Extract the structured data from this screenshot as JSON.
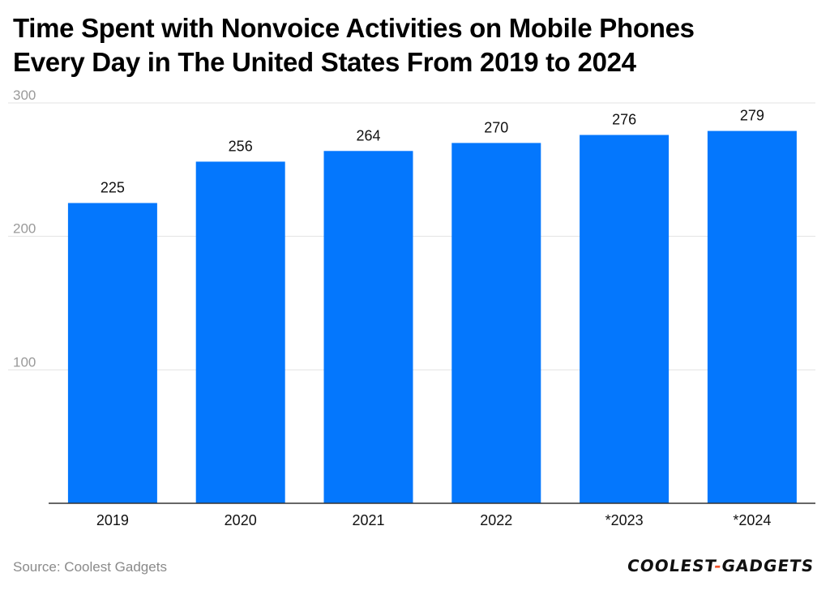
{
  "header": {
    "title_line1": "Time Spent with Nonvoice Activities on Mobile Phones",
    "title_line2": "Every Day in The United States From 2019 to 2024"
  },
  "footer": {
    "source": "Source: Coolest Gadgets",
    "logo_left": "COOLEST",
    "logo_dash": "-",
    "logo_right": "GADGETS"
  },
  "colors": {
    "bar": "#0477fd",
    "grid": "#e3e3e3",
    "axis": "#333333",
    "tick_text": "#9a9a9a",
    "label_text": "#111111"
  },
  "chart_data": {
    "type": "bar",
    "title": "Time Spent with Nonvoice Activities on Mobile Phones Every Day in The United States From 2019 to 2024",
    "xlabel": "",
    "ylabel": "",
    "categories": [
      "2019",
      "2020",
      "2021",
      "2022",
      "*2023",
      "*2024"
    ],
    "values": [
      225,
      256,
      264,
      270,
      276,
      279
    ],
    "data_labels": [
      "225",
      "256",
      "264",
      "270",
      "276",
      "279"
    ],
    "ylim": [
      0,
      300
    ],
    "yticks": [
      100,
      200,
      300
    ],
    "ytick_labels": [
      "100",
      "200",
      "300"
    ],
    "grid": true,
    "legend": "none"
  }
}
